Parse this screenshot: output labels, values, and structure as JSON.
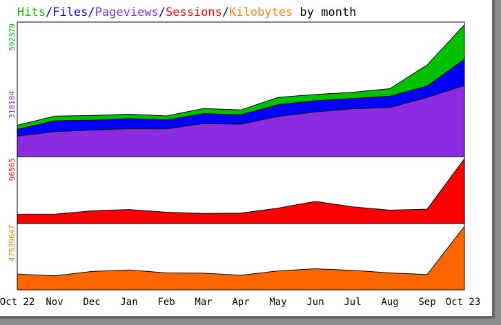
{
  "chart_data": {
    "type": "area",
    "title": {
      "parts": [
        {
          "text": "Hits",
          "color": "#00c000"
        },
        {
          "text": "/",
          "color": "#0000a0"
        },
        {
          "text": "Files",
          "color": "#0000ff"
        },
        {
          "text": "/",
          "color": "#0000a0"
        },
        {
          "text": "Pageviews",
          "color": "#8b2be2"
        },
        {
          "text": "/",
          "color": "#0000a0"
        },
        {
          "text": "Sessions",
          "color": "#ff0000"
        },
        {
          "text": "/",
          "color": "#0000a0"
        },
        {
          "text": "Kilobytes",
          "color": "#ff8000"
        },
        {
          "text": " by month",
          "color": "#000000"
        }
      ]
    },
    "categories": [
      "Oct 22",
      "Nov",
      "Dec",
      "Jan",
      "Feb",
      "Mar",
      "Apr",
      "May",
      "Jun",
      "Jul",
      "Aug",
      "Sep",
      "Oct 23"
    ],
    "panels": [
      {
        "name": "hits-files-pageviews",
        "max": 592379,
        "labels": [
          {
            "text": "592379",
            "color": "#00c000"
          },
          {
            "text": "318184",
            "color": "#8b2be2"
          }
        ],
        "series": [
          {
            "name": "Hits",
            "color": "#00c000",
            "values": [
              140000,
              181000,
              184000,
              190000,
              182000,
              215000,
              209000,
              265000,
              278000,
              288000,
              304000,
              410000,
              590000
            ]
          },
          {
            "name": "Files",
            "color": "#0000ff",
            "values": [
              122000,
              160000,
              163000,
              170000,
              164000,
              192000,
              187000,
              232000,
              250000,
              260000,
              270000,
              315000,
              435000
            ]
          },
          {
            "name": "Pageviews",
            "color": "#8b2be2",
            "values": [
              92000,
              112000,
              119000,
              125000,
              124000,
              148000,
              145000,
              180000,
              200000,
              214000,
              220000,
              265000,
              318184
            ]
          }
        ]
      },
      {
        "name": "sessions",
        "max": 96565,
        "labels": [
          {
            "text": "96565",
            "color": "#ff0000"
          }
        ],
        "series": [
          {
            "name": "Sessions",
            "color": "#ff0000",
            "values": [
              14000,
              14000,
              19000,
              21000,
              17000,
              15000,
              15500,
              23000,
              33000,
              25000,
              20000,
              21500,
              96565
            ]
          }
        ]
      },
      {
        "name": "kilobytes",
        "max": 47539647,
        "labels": [
          {
            "text": "47539647",
            "color": "#ff8000"
          }
        ],
        "series": [
          {
            "name": "Kilobytes",
            "color": "#ff6600",
            "values": [
              11700000,
              10400000,
              13600000,
              14700000,
              12500000,
              12300000,
              10800000,
              14000000,
              15600000,
              14400000,
              12500000,
              11300000,
              47000000
            ]
          }
        ]
      }
    ]
  }
}
